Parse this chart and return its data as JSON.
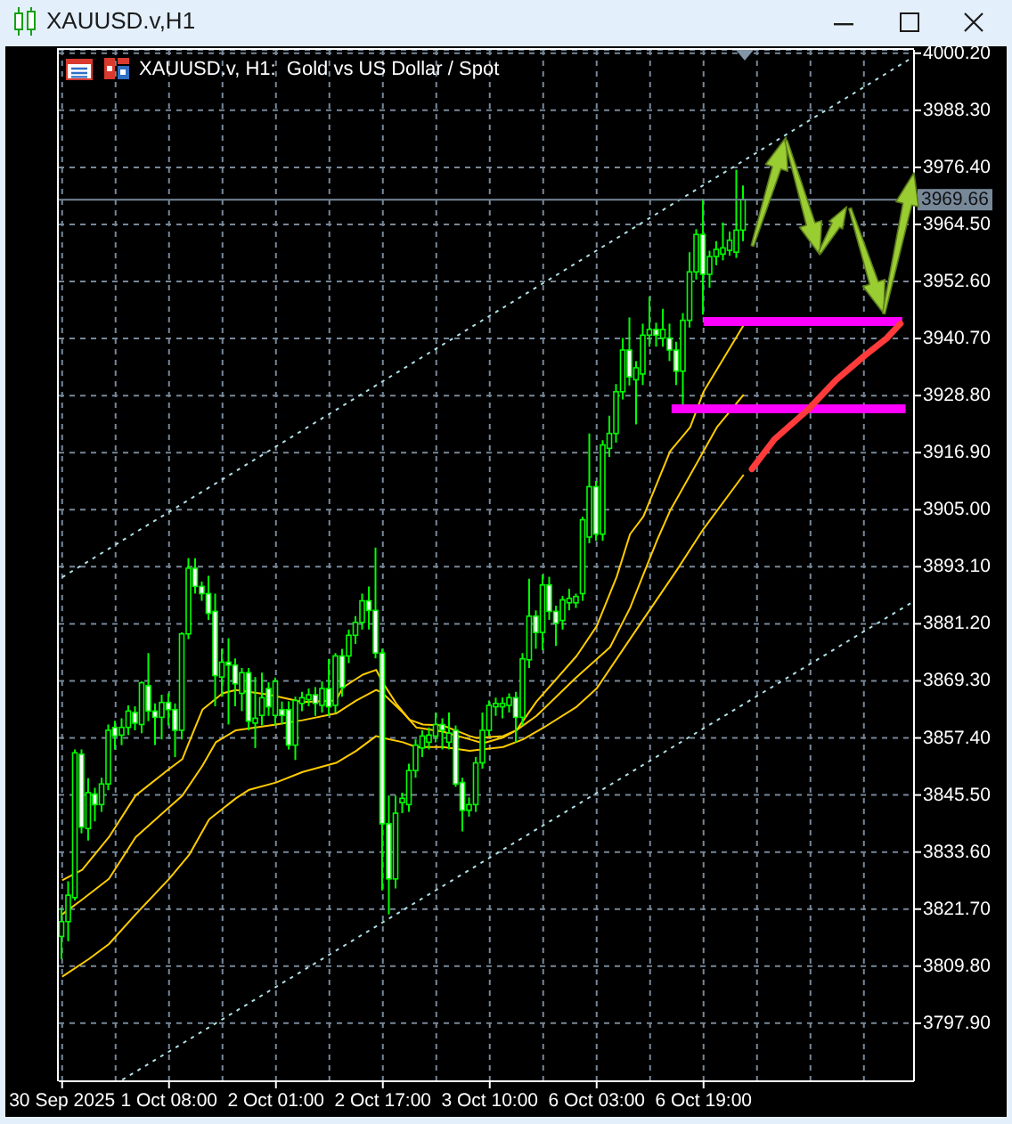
{
  "chart_data": {
    "type": "candlestick",
    "title": "XAUUSD.v,H1",
    "subtitle": "XAUUSD.v, H1:  Gold vs US Dollar / Spot",
    "color": "#00ff00",
    "categories": [
      "30 Sep 2025",
      null,
      null,
      null,
      null,
      null,
      null,
      null,
      null,
      null,
      null,
      null,
      null,
      null,
      null,
      null,
      "1 Oct 08:00",
      null,
      null,
      null,
      null,
      null,
      null,
      null,
      null,
      null,
      null,
      null,
      null,
      null,
      null,
      null,
      "2 Oct 01:00",
      null,
      null,
      null,
      null,
      null,
      null,
      null,
      null,
      null,
      null,
      null,
      null,
      null,
      null,
      null,
      "2 Oct 17:00",
      null,
      null,
      null,
      null,
      null,
      null,
      null,
      null,
      null,
      null,
      null,
      null,
      null,
      null,
      null,
      "3 Oct 10:00",
      null,
      null,
      null,
      null,
      null,
      null,
      null,
      null,
      null,
      null,
      null,
      null,
      null,
      null,
      null,
      "6 Oct 03:00",
      null,
      null,
      null,
      null,
      null,
      null,
      null,
      null,
      null,
      null,
      null,
      null,
      null,
      null,
      null,
      "6 Oct 19:00",
      null,
      null,
      null,
      null,
      null,
      null,
      null,
      null,
      null,
      null,
      null,
      null,
      null,
      null,
      null,
      null,
      null,
      null,
      null,
      null,
      null,
      null,
      null,
      null,
      null,
      null,
      null,
      null,
      null,
      null,
      null
    ],
    "ohlc": [
      [
        3816.0,
        3822.0,
        3811.3,
        3819.1
      ],
      [
        3819.1,
        3827.5,
        3815.0,
        3824.6
      ],
      [
        3824.1,
        3855.0,
        3823.5,
        3854.3
      ],
      [
        3854.0,
        3855.0,
        3837.5,
        3838.8
      ],
      [
        3838.5,
        3849.0,
        3836.0,
        3846.0
      ],
      [
        3845.7,
        3847.0,
        3840.0,
        3843.5
      ],
      [
        3843.5,
        3849.1,
        3842.0,
        3847.8
      ],
      [
        3847.8,
        3860.2,
        3846.5,
        3859.0
      ],
      [
        3859.6,
        3861.0,
        3855.0,
        3857.8
      ],
      [
        3858.0,
        3861.5,
        3855.9,
        3859.6
      ],
      [
        3859.6,
        3864.2,
        3858.0,
        3863.0
      ],
      [
        3862.7,
        3864.0,
        3859.0,
        3860.5
      ],
      [
        3860.2,
        3869.2,
        3858.4,
        3868.9
      ],
      [
        3868.3,
        3875.1,
        3860.9,
        3863.0
      ],
      [
        3863.0,
        3864.6,
        3855.9,
        3861.7
      ],
      [
        3861.7,
        3866.4,
        3857.1,
        3864.8
      ],
      [
        3864.8,
        3866.7,
        3860.0,
        3863.3
      ],
      [
        3863.3,
        3864.6,
        3853.4,
        3859.0
      ],
      [
        3859.0,
        3879.4,
        3857.1,
        3879.1
      ],
      [
        3879.1,
        3894.9,
        3878.0,
        3892.8
      ],
      [
        3892.8,
        3894.9,
        3887.5,
        3889.0
      ],
      [
        3889.0,
        3890.0,
        3886.0,
        3887.5
      ],
      [
        3887.5,
        3891.2,
        3882.0,
        3883.4
      ],
      [
        3883.8,
        3887.5,
        3864.0,
        3870.4
      ],
      [
        3870.1,
        3876.0,
        3866.0,
        3873.2
      ],
      [
        3873.2,
        3878.2,
        3860.2,
        3872.6
      ],
      [
        3872.6,
        3874.0,
        3864.0,
        3868.7
      ],
      [
        3866.7,
        3872.0,
        3863.0,
        3871.0
      ],
      [
        3871.0,
        3872.0,
        3859.0,
        3860.9
      ],
      [
        3860.5,
        3870.1,
        3855.3,
        3861.5
      ],
      [
        3862.1,
        3871.0,
        3860.0,
        3865.8
      ],
      [
        3867.7,
        3869.0,
        3862.0,
        3863.9
      ],
      [
        3862.1,
        3870.0,
        3860.0,
        3869.2
      ],
      [
        3863.3,
        3865.0,
        3860.2,
        3862.1
      ],
      [
        3863.3,
        3865.0,
        3855.0,
        3855.9
      ],
      [
        3855.9,
        3866.0,
        3852.8,
        3865.2
      ],
      [
        3864.6,
        3867.0,
        3863.0,
        3865.8
      ],
      [
        3865.4,
        3867.7,
        3864.0,
        3866.4
      ],
      [
        3866.4,
        3868.0,
        3862.0,
        3864.6
      ],
      [
        3864.2,
        3869.2,
        3862.7,
        3867.7
      ],
      [
        3867.7,
        3873.9,
        3862.0,
        3863.9
      ],
      [
        3864.2,
        3875.1,
        3862.7,
        3874.5
      ],
      [
        3874.5,
        3876.0,
        3866.0,
        3867.9
      ],
      [
        3874.5,
        3880.0,
        3873.0,
        3878.8
      ],
      [
        3878.8,
        3882.8,
        3877.0,
        3881.5
      ],
      [
        3881.5,
        3887.5,
        3880.0,
        3886.0
      ],
      [
        3886.0,
        3889.0,
        3880.0,
        3884.0
      ],
      [
        3884.0,
        3897.1,
        3874.0,
        3875.1
      ],
      [
        3875.1,
        3876.0,
        3825.6,
        3839.5
      ],
      [
        3839.5,
        3845.4,
        3820.6,
        3828.0
      ],
      [
        3828.0,
        3845.4,
        3826.0,
        3841.7
      ],
      [
        3843.9,
        3846.0,
        3841.7,
        3844.8
      ],
      [
        3843.5,
        3852.0,
        3842.0,
        3850.6
      ],
      [
        3850.6,
        3857.1,
        3849.1,
        3855.9
      ],
      [
        3855.3,
        3859.0,
        3853.4,
        3857.8
      ],
      [
        3856.5,
        3859.6,
        3855.0,
        3858.0
      ],
      [
        3857.8,
        3862.7,
        3856.5,
        3860.2
      ],
      [
        3860.2,
        3861.5,
        3855.0,
        3859.0
      ],
      [
        3856.5,
        3862.7,
        3855.0,
        3858.4
      ],
      [
        3859.0,
        3860.0,
        3847.2,
        3847.8
      ],
      [
        3848.1,
        3849.1,
        3837.9,
        3842.3
      ],
      [
        3842.3,
        3845.0,
        3841.0,
        3843.5
      ],
      [
        3843.5,
        3853.4,
        3842.0,
        3852.2
      ],
      [
        3852.2,
        3862.7,
        3851.0,
        3859.0
      ],
      [
        3859.0,
        3865.2,
        3857.8,
        3864.2
      ],
      [
        3863.9,
        3865.8,
        3862.0,
        3864.6
      ],
      [
        3863.9,
        3865.8,
        3861.5,
        3864.6
      ],
      [
        3864.2,
        3866.7,
        3862.7,
        3865.8
      ],
      [
        3865.8,
        3867.0,
        3856.5,
        3861.7
      ],
      [
        3861.7,
        3875.1,
        3860.0,
        3873.9
      ],
      [
        3873.7,
        3890.6,
        3872.0,
        3882.8
      ],
      [
        3882.8,
        3884.0,
        3876.0,
        3879.4
      ],
      [
        3879.4,
        3891.4,
        3875.7,
        3889.3
      ],
      [
        3889.3,
        3891.0,
        3882.0,
        3883.8
      ],
      [
        3883.8,
        3885.0,
        3876.6,
        3881.3
      ],
      [
        3881.9,
        3887.0,
        3880.0,
        3886.2
      ],
      [
        3885.6,
        3888.5,
        3884.0,
        3886.5
      ],
      [
        3885.6,
        3887.5,
        3884.5,
        3886.9
      ],
      [
        3887.5,
        3903.5,
        3886.0,
        3902.9
      ],
      [
        3899.3,
        3920.9,
        3898.0,
        3909.8
      ],
      [
        3909.8,
        3911.0,
        3898.5,
        3899.9
      ],
      [
        3899.9,
        3919.5,
        3898.5,
        3918.5
      ],
      [
        3917.8,
        3924.6,
        3916.0,
        3920.9
      ],
      [
        3920.9,
        3931.2,
        3919.0,
        3929.6
      ],
      [
        3929.6,
        3940.8,
        3928.0,
        3938.3
      ],
      [
        3938.3,
        3945.1,
        3930.9,
        3932.7
      ],
      [
        3932.1,
        3936.0,
        3922.8,
        3934.6
      ],
      [
        3933.3,
        3943.8,
        3931.0,
        3941.4
      ],
      [
        3941.4,
        3949.4,
        3939.0,
        3942.6
      ],
      [
        3942.6,
        3944.0,
        3939.0,
        3941.4
      ],
      [
        3940.8,
        3946.9,
        3939.0,
        3942.6
      ],
      [
        3940.8,
        3943.8,
        3936.0,
        3938.3
      ],
      [
        3938.3,
        3940.0,
        3931.0,
        3933.9
      ],
      [
        3933.9,
        3946.0,
        3926.5,
        3944.5
      ],
      [
        3944.5,
        3958.7,
        3943.0,
        3954.6
      ],
      [
        3954.6,
        3963.5,
        3953.0,
        3962.4
      ],
      [
        3962.4,
        3969.9,
        3945.7,
        3954.1
      ],
      [
        3954.1,
        3959.0,
        3951.3,
        3957.8
      ],
      [
        3957.8,
        3961.0,
        3956.0,
        3959.3
      ],
      [
        3958.3,
        3964.9,
        3957.0,
        3959.6
      ],
      [
        3959.1,
        3963.0,
        3958.0,
        3961.2
      ],
      [
        3958.7,
        3975.9,
        3957.5,
        3963.3
      ],
      [
        3963.3,
        3972.6,
        3961.0,
        3969.66
      ],
      null,
      null,
      null,
      null,
      null,
      null,
      null,
      null,
      null,
      null,
      null,
      null,
      null,
      null,
      null,
      null,
      null,
      null,
      null,
      null,
      null,
      null,
      null,
      null,
      null
    ],
    "series": [
      {
        "type": "line",
        "color": "#ffcc00",
        "values": [
          3827.7,
          null,
          null,
          3829.9,
          null,
          null,
          null,
          3836.7,
          null,
          null,
          null,
          3845.4,
          null,
          null,
          null,
          null,
          3850.9,
          null,
          3853.0,
          3856.5,
          null,
          3863.3,
          null,
          null,
          3866.7,
          null,
          3867.4,
          null,
          null,
          null,
          null,
          3866.4,
          null,
          null,
          null,
          null,
          3864.9,
          null,
          null,
          null,
          null,
          3865.2,
          3867.9,
          null,
          null,
          3870.6,
          null,
          3871.6,
          3868.9,
          null,
          3864.6,
          null,
          3861.2,
          null,
          3860.2,
          null,
          null,
          3860.0,
          null,
          null,
          null,
          3857.8,
          3857.4,
          null,
          null,
          null,
          3857.8,
          null,
          3859.0,
          null,
          null,
          3865.0,
          null,
          null,
          null,
          null,
          null,
          3874.5,
          null,
          null,
          3880.7,
          null,
          null,
          3891.0,
          null,
          3899.9,
          null,
          3903.6,
          null,
          null,
          null,
          3917.2,
          null,
          null,
          3922.2,
          null,
          3929.6,
          null,
          null,
          null,
          null,
          null,
          3943.5,
          null,
          null,
          null,
          null,
          null,
          null,
          null,
          null,
          null,
          null,
          null,
          null,
          null,
          null,
          null,
          null,
          null,
          null,
          null,
          null,
          null,
          null,
          null,
          null,
          null
        ]
      },
      {
        "type": "line",
        "color": "#ffcc00",
        "values": [
          3820.6,
          null,
          null,
          3823.7,
          null,
          null,
          null,
          3828.0,
          null,
          null,
          null,
          3836.7,
          null,
          null,
          null,
          null,
          3842.9,
          null,
          3845.4,
          null,
          null,
          3851.6,
          null,
          3856.5,
          null,
          null,
          3859.0,
          null,
          null,
          null,
          null,
          null,
          3860.2,
          null,
          null,
          null,
          3861.1,
          null,
          null,
          null,
          null,
          3862.5,
          null,
          null,
          3865.2,
          null,
          null,
          3867.4,
          3866.7,
          null,
          null,
          3862.7,
          null,
          3859.6,
          null,
          null,
          null,
          3858.7,
          null,
          null,
          null,
          3857.1,
          null,
          3856.3,
          null,
          null,
          3857.5,
          null,
          3859.0,
          null,
          null,
          3862.0,
          null,
          null,
          null,
          null,
          null,
          3870.1,
          null,
          null,
          null,
          null,
          3876.3,
          null,
          null,
          3884.5,
          null,
          3891.5,
          null,
          3898.5,
          null,
          3904.8,
          null,
          null,
          null,
          null,
          3917.2,
          null,
          3922.2,
          null,
          null,
          null,
          3929.0,
          null,
          null,
          null,
          null,
          null,
          null,
          null,
          null,
          null,
          null,
          null,
          null,
          null,
          null,
          null,
          null,
          null,
          null,
          null,
          null,
          null,
          null,
          null,
          null,
          null
        ]
      },
      {
        "type": "line",
        "color": "#ffcc00",
        "values": [
          3807.6,
          null,
          null,
          null,
          3811.3,
          null,
          null,
          3814.4,
          null,
          null,
          null,
          3820.6,
          null,
          null,
          null,
          null,
          3828.0,
          null,
          null,
          3833.0,
          null,
          null,
          3840.4,
          null,
          null,
          null,
          3844.8,
          null,
          3846.6,
          null,
          null,
          null,
          3848.1,
          null,
          null,
          null,
          3850.3,
          null,
          null,
          null,
          null,
          3852.2,
          null,
          null,
          3854.7,
          null,
          null,
          3857.8,
          3857.4,
          null,
          null,
          3856.5,
          null,
          3855.5,
          null,
          null,
          null,
          3855.5,
          null,
          null,
          null,
          3854.7,
          null,
          null,
          null,
          null,
          3855.5,
          null,
          null,
          3857.1,
          null,
          null,
          3859.5,
          null,
          null,
          null,
          null,
          3863.9,
          null,
          null,
          3867.7,
          null,
          null,
          null,
          null,
          null,
          3880.1,
          null,
          null,
          null,
          null,
          null,
          3892.4,
          null,
          null,
          null,
          3901.0,
          null,
          null,
          null,
          null,
          null,
          3912.3,
          null,
          null,
          null,
          null,
          null,
          null,
          null,
          null,
          null,
          null,
          null,
          null,
          null,
          null,
          null,
          null,
          null,
          null,
          null,
          null,
          null,
          null,
          null,
          null,
          null
        ]
      },
      {
        "type": "line",
        "color": "#b0e0e6",
        "line_style": "dotted",
        "values": [
          3890.9,
          null,
          null,
          null,
          null,
          null,
          null,
          null,
          null,
          null,
          null,
          null,
          null,
          null,
          null,
          null,
          null,
          null,
          null,
          null,
          null,
          null,
          null,
          null,
          null,
          null,
          null,
          null,
          null,
          null,
          null,
          null,
          null,
          null,
          null,
          null,
          null,
          null,
          null,
          null,
          null,
          null,
          null,
          null,
          null,
          null,
          null,
          null,
          null,
          null,
          null,
          null,
          null,
          null,
          null,
          null,
          null,
          null,
          null,
          null,
          null,
          null,
          null,
          null,
          null,
          null,
          null,
          null,
          null,
          null,
          null,
          null,
          null,
          null,
          null,
          null,
          null,
          null,
          null,
          null,
          null,
          null,
          null,
          null,
          null,
          null,
          null,
          null,
          null,
          null,
          null,
          null,
          null,
          null,
          null,
          null,
          null,
          null,
          null,
          null,
          null,
          null,
          null,
          null,
          null,
          null,
          null,
          null,
          null,
          null,
          null,
          null,
          null,
          null,
          null,
          null,
          null,
          null,
          null,
          null,
          null,
          null,
          null,
          null,
          null,
          null,
          null,
          3999.1
        ]
      },
      {
        "type": "line",
        "color": "#b0e0e6",
        "line_style": "dotted",
        "values": [
          null,
          null,
          null,
          null,
          null,
          null,
          null,
          null,
          null,
          3786.1,
          null,
          null,
          null,
          null,
          null,
          null,
          null,
          null,
          null,
          null,
          null,
          null,
          null,
          null,
          null,
          null,
          null,
          null,
          null,
          null,
          null,
          null,
          null,
          null,
          null,
          null,
          null,
          null,
          null,
          null,
          null,
          null,
          null,
          null,
          null,
          null,
          null,
          null,
          null,
          null,
          null,
          null,
          null,
          null,
          null,
          null,
          null,
          null,
          null,
          null,
          null,
          null,
          null,
          null,
          null,
          null,
          null,
          null,
          null,
          null,
          null,
          null,
          null,
          null,
          null,
          null,
          null,
          null,
          null,
          null,
          null,
          null,
          null,
          null,
          null,
          null,
          null,
          null,
          null,
          null,
          null,
          null,
          null,
          null,
          null,
          null,
          null,
          null,
          null,
          null,
          null,
          null,
          null,
          null,
          null,
          null,
          null,
          null,
          null,
          null,
          null,
          null,
          null,
          null,
          null,
          null,
          null,
          null,
          null,
          null,
          null,
          null,
          null,
          null,
          null,
          null,
          null,
          3885.5
        ]
      }
    ],
    "ylim": [
      3785.8,
      4000.9
    ],
    "yticks": [
      {
        "value": 4000.2,
        "label": "4000.20"
      },
      {
        "value": 3988.3,
        "label": "3988.30"
      },
      {
        "value": 3976.4,
        "label": "3976.40"
      },
      {
        "value": 3964.5,
        "label": "3964.50"
      },
      {
        "value": 3952.6,
        "label": "3952.60"
      },
      {
        "value": 3940.7,
        "label": "3940.70"
      },
      {
        "value": 3928.8,
        "label": "3928.80"
      },
      {
        "value": 3916.9,
        "label": "3916.90"
      },
      {
        "value": 3905,
        "label": "3905.00"
      },
      {
        "value": 3893.1,
        "label": "3893.10"
      },
      {
        "value": 3881.2,
        "label": "3881.20"
      },
      {
        "value": 3869.3,
        "label": "3869.30"
      },
      {
        "value": 3857.4,
        "label": "3857.40"
      },
      {
        "value": 3845.5,
        "label": "3845.50"
      },
      {
        "value": 3833.6,
        "label": "3833.60"
      },
      {
        "value": 3821.7,
        "label": "3821.70"
      },
      {
        "value": 3809.8,
        "label": "3809.80"
      },
      {
        "value": 3797.9,
        "label": "3797.90"
      }
    ],
    "ref_lines": [
      {
        "axis": "y",
        "value": 3969.66,
        "label": "3969.66",
        "color": "#778899"
      }
    ],
    "grid": true
  }
}
